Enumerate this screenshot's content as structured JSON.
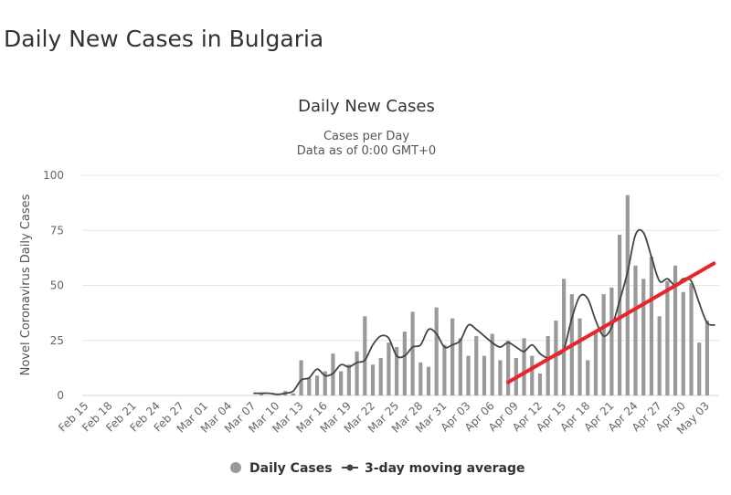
{
  "page": {
    "title": "Daily New Cases in Bulgaria"
  },
  "chart_data": {
    "type": "bar",
    "title": "Daily New Cases",
    "subtitle_line1": "Cases per Day",
    "subtitle_line2": "Data as of 0:00 GMT+0",
    "ylabel": "Novel Coronavirus Daily Cases",
    "xlabel": "",
    "ylim": [
      0,
      100
    ],
    "yticks": [
      0,
      25,
      50,
      75,
      100
    ],
    "grid": true,
    "legend_placement": "bottom-center",
    "legend": {
      "bars": "Daily Cases",
      "line": "3-day moving average"
    },
    "colors": {
      "bars": "#999999",
      "line": "#444444",
      "annotation": "#e8252b",
      "grid": "#e6e6e6"
    },
    "x_tick_labels": [
      "Feb 15",
      "Feb 18",
      "Feb 21",
      "Feb 24",
      "Feb 27",
      "Mar 01",
      "Mar 04",
      "Mar 07",
      "Mar 10",
      "Mar 13",
      "Mar 16",
      "Mar 19",
      "Mar 22",
      "Mar 25",
      "Mar 28",
      "Mar 31",
      "Apr 03",
      "Apr 06",
      "Apr 09",
      "Apr 12",
      "Apr 15",
      "Apr 18",
      "Apr 21",
      "Apr 24",
      "Apr 27",
      "Apr 30",
      "May 03"
    ],
    "categories": [
      "Feb 15",
      "Feb 16",
      "Feb 17",
      "Feb 18",
      "Feb 19",
      "Feb 20",
      "Feb 21",
      "Feb 22",
      "Feb 23",
      "Feb 24",
      "Feb 25",
      "Feb 26",
      "Feb 27",
      "Feb 28",
      "Feb 29",
      "Mar 01",
      "Mar 02",
      "Mar 03",
      "Mar 04",
      "Mar 05",
      "Mar 06",
      "Mar 07",
      "Mar 08",
      "Mar 09",
      "Mar 10",
      "Mar 11",
      "Mar 12",
      "Mar 13",
      "Mar 14",
      "Mar 15",
      "Mar 16",
      "Mar 17",
      "Mar 18",
      "Mar 19",
      "Mar 20",
      "Mar 21",
      "Mar 22",
      "Mar 23",
      "Mar 24",
      "Mar 25",
      "Mar 26",
      "Mar 27",
      "Mar 28",
      "Mar 29",
      "Mar 30",
      "Mar 31",
      "Apr 01",
      "Apr 02",
      "Apr 03",
      "Apr 04",
      "Apr 05",
      "Apr 06",
      "Apr 07",
      "Apr 08",
      "Apr 09",
      "Apr 10",
      "Apr 11",
      "Apr 12",
      "Apr 13",
      "Apr 14",
      "Apr 15",
      "Apr 16",
      "Apr 17",
      "Apr 18",
      "Apr 19",
      "Apr 20",
      "Apr 21",
      "Apr 22",
      "Apr 23",
      "Apr 24",
      "Apr 25",
      "Apr 26",
      "Apr 27",
      "Apr 28",
      "Apr 29",
      "Apr 30",
      "May 01",
      "May 02",
      "May 03",
      "May 04"
    ],
    "series": [
      {
        "name": "Daily Cases",
        "type": "bar",
        "values": [
          0,
          0,
          0,
          0,
          0,
          0,
          0,
          0,
          0,
          0,
          0,
          0,
          0,
          0,
          0,
          0,
          0,
          0,
          0,
          0,
          0,
          0,
          1,
          0,
          0,
          2,
          1,
          16,
          8,
          9,
          11,
          19,
          11,
          14,
          20,
          36,
          14,
          17,
          24,
          22,
          29,
          38,
          15,
          13,
          40,
          23,
          35,
          26,
          18,
          27,
          18,
          28,
          16,
          25,
          17,
          26,
          18,
          10,
          27,
          34,
          53,
          46,
          35,
          16,
          29,
          46,
          49,
          73,
          91,
          59,
          53,
          63,
          36,
          52,
          59,
          47,
          51,
          24,
          34,
          0
        ]
      },
      {
        "name": "3-day moving average",
        "type": "line",
        "values": [
          0,
          0,
          0,
          0,
          0,
          0,
          0,
          0,
          0,
          0,
          0,
          0,
          0,
          0,
          0,
          0,
          0,
          0,
          0,
          0,
          0,
          1,
          1,
          1,
          0.5,
          1,
          2,
          7,
          8,
          12,
          9,
          10,
          14,
          13,
          15,
          16,
          23,
          27,
          26,
          18,
          18,
          22,
          23,
          30,
          28,
          22,
          23,
          25,
          32,
          30,
          27,
          24,
          22,
          24,
          22,
          20,
          23,
          19,
          17,
          18,
          21,
          35,
          45,
          44,
          34,
          27,
          31,
          43,
          56,
          73,
          74,
          63,
          52,
          53,
          50,
          53,
          52,
          42,
          33,
          32
        ]
      }
    ],
    "annotation": {
      "type": "trend-line",
      "x_start": "Apr 08",
      "y_start": 6,
      "x_end": "May 04",
      "y_end": 60
    }
  }
}
